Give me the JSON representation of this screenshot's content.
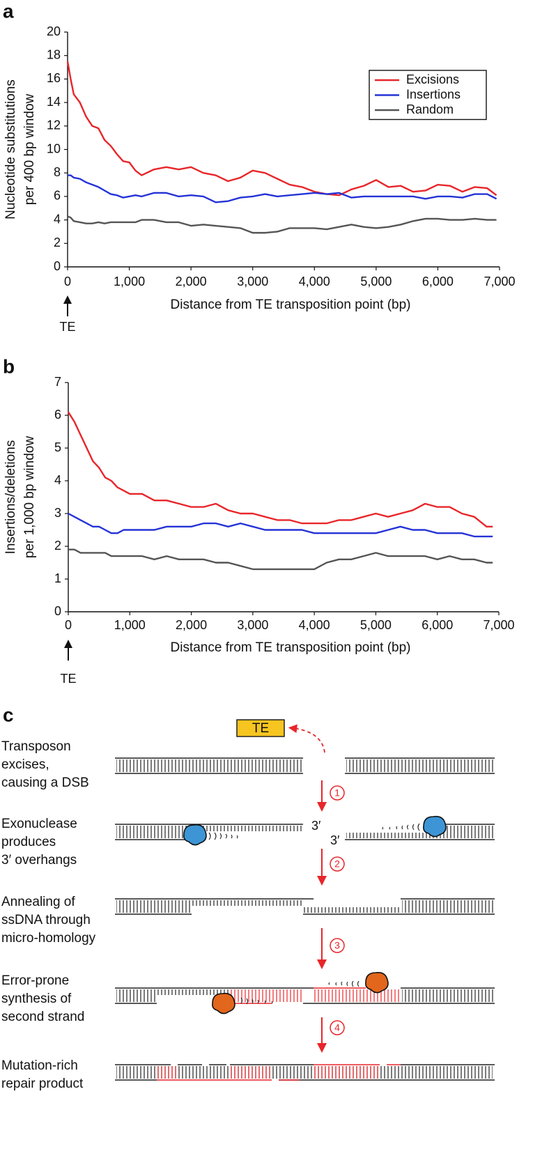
{
  "chart_data": [
    {
      "type": "line",
      "panel_label": "a",
      "ylabel": [
        "Nucleotide substitutions",
        "per 400 bp window"
      ],
      "xlabel": "Distance from TE transposition point (bp)",
      "annotation": "TE",
      "legend": "upper right",
      "xlim": [
        0,
        7000
      ],
      "ylim": [
        0,
        20
      ],
      "xticks": [
        0,
        {
          "value": 1000,
          "label": "1,000"
        },
        {
          "value": 2000,
          "label": "2,000"
        },
        {
          "value": 3000,
          "label": "3,000"
        },
        {
          "value": 4000,
          "label": "4,000"
        },
        {
          "value": 5000,
          "label": "5,000"
        },
        {
          "value": 6000,
          "label": "6,000"
        },
        {
          "value": 7000,
          "label": "7,000"
        }
      ],
      "yticks": [
        0,
        2,
        4,
        6,
        8,
        10,
        12,
        14,
        16,
        18,
        20
      ],
      "x": [
        0,
        50,
        100,
        200,
        300,
        400,
        500,
        600,
        700,
        800,
        900,
        1000,
        1100,
        1200,
        1400,
        1600,
        1800,
        2000,
        2200,
        2400,
        2600,
        2800,
        3000,
        3200,
        3400,
        3600,
        3800,
        4000,
        4200,
        4400,
        4600,
        4800,
        5000,
        5200,
        5400,
        5600,
        5800,
        6000,
        6200,
        6400,
        6600,
        6800,
        6950
      ],
      "series": [
        {
          "name": "Excisions",
          "color": "#e8262a",
          "values": [
            17.5,
            16,
            14.7,
            14,
            12.8,
            12,
            11.8,
            10.8,
            10.3,
            9.6,
            9.0,
            8.9,
            8.2,
            7.8,
            8.3,
            8.5,
            8.3,
            8.5,
            8.0,
            7.8,
            7.3,
            7.6,
            8.2,
            8.0,
            7.5,
            7.0,
            6.8,
            6.4,
            6.2,
            6.1,
            6.6,
            6.9,
            7.4,
            6.8,
            6.9,
            6.4,
            6.5,
            7.0,
            6.9,
            6.4,
            6.8,
            6.7,
            6.1
          ]
        },
        {
          "name": "Insertions",
          "color": "#2433d6",
          "values": [
            7.8,
            7.8,
            7.6,
            7.5,
            7.2,
            7.0,
            6.8,
            6.5,
            6.2,
            6.1,
            5.9,
            6.0,
            6.1,
            6.0,
            6.3,
            6.3,
            6.0,
            6.1,
            6.0,
            5.5,
            5.6,
            5.9,
            6.0,
            6.2,
            6.0,
            6.1,
            6.2,
            6.3,
            6.2,
            6.3,
            5.9,
            6.0,
            6.0,
            6.0,
            6.0,
            6.0,
            5.8,
            6.0,
            6.0,
            5.9,
            6.2,
            6.2,
            5.8
          ]
        },
        {
          "name": "Random",
          "color": "#555555",
          "values": [
            4.3,
            4.2,
            3.9,
            3.8,
            3.7,
            3.7,
            3.8,
            3.7,
            3.8,
            3.8,
            3.8,
            3.8,
            3.8,
            4.0,
            4.0,
            3.8,
            3.8,
            3.5,
            3.6,
            3.5,
            3.4,
            3.3,
            2.9,
            2.9,
            3.0,
            3.3,
            3.3,
            3.3,
            3.2,
            3.4,
            3.6,
            3.4,
            3.3,
            3.4,
            3.6,
            3.9,
            4.1,
            4.1,
            4.0,
            4.0,
            4.1,
            4.0,
            4.0
          ]
        }
      ]
    },
    {
      "type": "line",
      "panel_label": "b",
      "ylabel": [
        "Insertions/deletions",
        "per 1,000 bp window"
      ],
      "xlabel": "Distance from TE transposition point (bp)",
      "annotation": "TE",
      "xlim": [
        0,
        7000
      ],
      "ylim": [
        0,
        7
      ],
      "xticks": [
        0,
        {
          "value": 1000,
          "label": "1,000"
        },
        {
          "value": 2000,
          "label": "2,000"
        },
        {
          "value": 3000,
          "label": "3,000"
        },
        {
          "value": 4000,
          "label": "4,000"
        },
        {
          "value": 5000,
          "label": "5,000"
        },
        {
          "value": 6000,
          "label": "6,000"
        },
        {
          "value": 7000,
          "label": "7,000"
        }
      ],
      "yticks": [
        0,
        1,
        2,
        3,
        4,
        5,
        6,
        7
      ],
      "x": [
        0,
        100,
        200,
        300,
        400,
        500,
        600,
        700,
        800,
        900,
        1000,
        1200,
        1400,
        1600,
        1800,
        2000,
        2200,
        2400,
        2600,
        2800,
        3000,
        3200,
        3400,
        3600,
        3800,
        4000,
        4200,
        4400,
        4600,
        4800,
        5000,
        5200,
        5400,
        5600,
        5800,
        6000,
        6200,
        6400,
        6600,
        6800,
        6900
      ],
      "series": [
        {
          "color": "#e8262a",
          "values": [
            6.1,
            5.8,
            5.4,
            5.0,
            4.6,
            4.4,
            4.1,
            4.0,
            3.8,
            3.7,
            3.6,
            3.6,
            3.4,
            3.4,
            3.3,
            3.2,
            3.2,
            3.3,
            3.1,
            3.0,
            3.0,
            2.9,
            2.8,
            2.8,
            2.7,
            2.7,
            2.7,
            2.8,
            2.8,
            2.9,
            3.0,
            2.9,
            3.0,
            3.1,
            3.3,
            3.2,
            3.2,
            3.0,
            2.9,
            2.6,
            2.6
          ]
        },
        {
          "color": "#2433d6",
          "values": [
            3.0,
            2.9,
            2.8,
            2.7,
            2.6,
            2.6,
            2.5,
            2.4,
            2.4,
            2.5,
            2.5,
            2.5,
            2.5,
            2.6,
            2.6,
            2.6,
            2.7,
            2.7,
            2.6,
            2.7,
            2.6,
            2.5,
            2.5,
            2.5,
            2.5,
            2.4,
            2.4,
            2.4,
            2.4,
            2.4,
            2.4,
            2.5,
            2.6,
            2.5,
            2.5,
            2.4,
            2.4,
            2.4,
            2.3,
            2.3,
            2.3
          ]
        },
        {
          "color": "#555555",
          "values": [
            1.9,
            1.9,
            1.8,
            1.8,
            1.8,
            1.8,
            1.8,
            1.7,
            1.7,
            1.7,
            1.7,
            1.7,
            1.6,
            1.7,
            1.6,
            1.6,
            1.6,
            1.5,
            1.5,
            1.4,
            1.3,
            1.3,
            1.3,
            1.3,
            1.3,
            1.3,
            1.5,
            1.6,
            1.6,
            1.7,
            1.8,
            1.7,
            1.7,
            1.7,
            1.7,
            1.6,
            1.7,
            1.6,
            1.6,
            1.5,
            1.5
          ]
        }
      ]
    }
  ],
  "diagram": {
    "panel_label": "c",
    "te_box": "TE",
    "steps": [
      {
        "label": [
          "Transposon",
          "excises,",
          "causing a DSB"
        ]
      },
      {
        "label": [
          "Exonuclease",
          "produces",
          "3′ overhangs"
        ]
      },
      {
        "label": [
          "Annealing of",
          "ssDNA through",
          "micro-homology"
        ]
      },
      {
        "label": [
          "Error-prone",
          "synthesis of",
          "second strand"
        ]
      },
      {
        "label": [
          "Mutation-rich",
          "repair product"
        ]
      }
    ],
    "step_numbers": [
      "1",
      "2",
      "3",
      "4"
    ],
    "overhang_labels": [
      "3′",
      "3′"
    ]
  }
}
